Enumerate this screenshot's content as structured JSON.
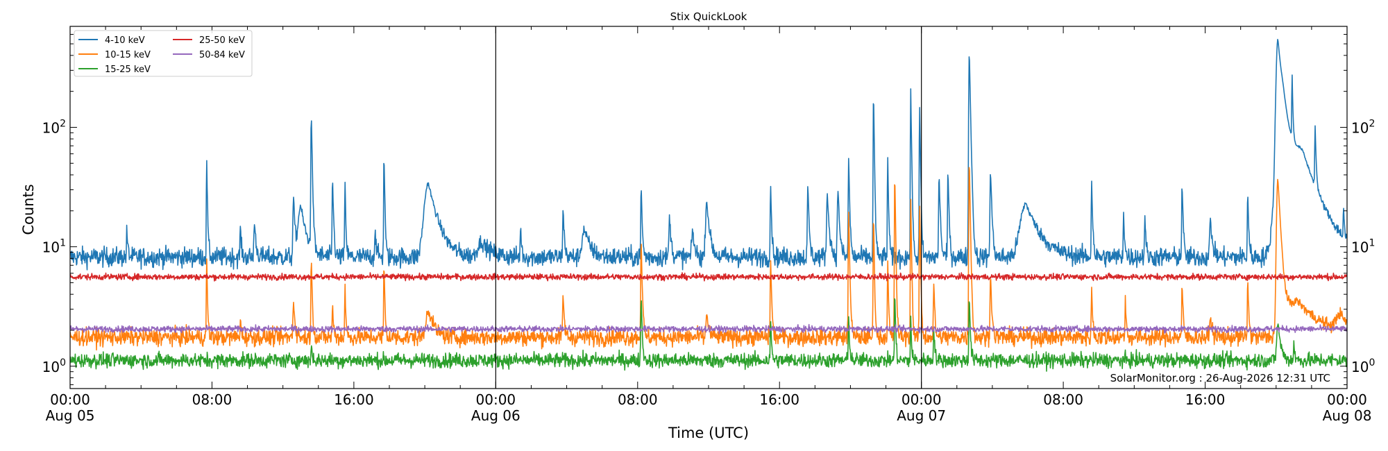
{
  "chart_data": {
    "type": "line",
    "title": "Stix QuickLook",
    "xlabel": "Time (UTC)",
    "ylabel": "Counts",
    "yscale": "log",
    "ylim": [
      0.65,
      700
    ],
    "x_unit": "hours since 2026-08-05 00:00 UTC",
    "xlim": [
      0,
      72
    ],
    "grid": false,
    "legend_position": "top-left",
    "footer_text": "SolarMonitor.org : 26-Aug-2026 12:31 UTC",
    "x_ticks": [
      {
        "hour": 0,
        "time": "00:00",
        "date": "Aug 05"
      },
      {
        "hour": 8,
        "time": "08:00",
        "date": ""
      },
      {
        "hour": 16,
        "time": "16:00",
        "date": ""
      },
      {
        "hour": 24,
        "time": "00:00",
        "date": "Aug 06"
      },
      {
        "hour": 32,
        "time": "08:00",
        "date": ""
      },
      {
        "hour": 40,
        "time": "16:00",
        "date": ""
      },
      {
        "hour": 48,
        "time": "00:00",
        "date": "Aug 07"
      },
      {
        "hour": 56,
        "time": "08:00",
        "date": ""
      },
      {
        "hour": 64,
        "time": "16:00",
        "date": ""
      },
      {
        "hour": 72,
        "time": "00:00",
        "date": "Aug 08"
      }
    ],
    "y_ticks": [
      {
        "value": 1,
        "base": "10",
        "exp": "0"
      },
      {
        "value": 10,
        "base": "10",
        "exp": "1"
      },
      {
        "value": 100,
        "base": "10",
        "exp": "2"
      }
    ],
    "day_boundaries": [
      24,
      48
    ],
    "series": [
      {
        "name": "4-10 keV",
        "color": "#1f77b4",
        "baseline": 8.2,
        "noise": 0.08,
        "peaks": [
          [
            3.2,
            14,
            0.05
          ],
          [
            7.7,
            56,
            0.04
          ],
          [
            9.6,
            15,
            0.05
          ],
          [
            10.4,
            16,
            0.08
          ],
          [
            12.6,
            26,
            0.08
          ],
          [
            13.0,
            22,
            0.3
          ],
          [
            13.6,
            130,
            0.05
          ],
          [
            14.8,
            39,
            0.05
          ],
          [
            15.5,
            37,
            0.04
          ],
          [
            17.2,
            14,
            0.06
          ],
          [
            17.7,
            63,
            0.04
          ],
          [
            20.2,
            34,
            0.5
          ],
          [
            23.2,
            11,
            0.5
          ],
          [
            25.4,
            15,
            0.05
          ],
          [
            27.8,
            21,
            0.06
          ],
          [
            29.0,
            14,
            0.3
          ],
          [
            32.2,
            33,
            0.05
          ],
          [
            33.8,
            18,
            0.08
          ],
          [
            35.1,
            14,
            0.1
          ],
          [
            35.9,
            24,
            0.15
          ],
          [
            39.5,
            33,
            0.05
          ],
          [
            41.6,
            33,
            0.06
          ],
          [
            42.7,
            27,
            0.1
          ],
          [
            43.3,
            30,
            0.08
          ],
          [
            43.9,
            56,
            0.05
          ],
          [
            45.3,
            205,
            0.04
          ],
          [
            46.1,
            60,
            0.04
          ],
          [
            47.4,
            210,
            0.04
          ],
          [
            47.9,
            160,
            0.04
          ],
          [
            49.0,
            40,
            0.06
          ],
          [
            49.5,
            45,
            0.05
          ],
          [
            50.7,
            440,
            0.06
          ],
          [
            51.9,
            43,
            0.07
          ],
          [
            53.9,
            23,
            0.7
          ],
          [
            57.6,
            36,
            0.05
          ],
          [
            59.4,
            20,
            0.05
          ],
          [
            60.6,
            19,
            0.05
          ],
          [
            62.7,
            35,
            0.05
          ],
          [
            64.3,
            17,
            0.1
          ],
          [
            66.4,
            29,
            0.05
          ],
          [
            68.1,
            490,
            0.2
          ],
          [
            68.4,
            120,
            0.7
          ],
          [
            68.9,
            220,
            0.04
          ],
          [
            70.2,
            80,
            0.05
          ],
          [
            69.5,
            40,
            1.0
          ],
          [
            71.8,
            19,
            0.04
          ]
        ]
      },
      {
        "name": "10-15 keV",
        "color": "#ff7f0e",
        "baseline": 1.75,
        "noise": 0.07,
        "peaks": [
          [
            7.7,
            8.5,
            0.04
          ],
          [
            9.6,
            2.5,
            0.05
          ],
          [
            13.6,
            8.0,
            0.05
          ],
          [
            12.6,
            3.5,
            0.08
          ],
          [
            14.8,
            3.3,
            0.05
          ],
          [
            15.5,
            5.0,
            0.04
          ],
          [
            17.7,
            7.7,
            0.04
          ],
          [
            20.2,
            3.0,
            0.3
          ],
          [
            27.8,
            4.0,
            0.06
          ],
          [
            32.2,
            12,
            0.05
          ],
          [
            35.9,
            2.8,
            0.1
          ],
          [
            39.5,
            8.0,
            0.05
          ],
          [
            43.9,
            20,
            0.05
          ],
          [
            45.3,
            20,
            0.04
          ],
          [
            46.1,
            8.0,
            0.04
          ],
          [
            46.5,
            43,
            0.04
          ],
          [
            47.4,
            25,
            0.04
          ],
          [
            47.9,
            24,
            0.04
          ],
          [
            48.7,
            5.0,
            0.05
          ],
          [
            50.7,
            55,
            0.05
          ],
          [
            51.9,
            6.0,
            0.06
          ],
          [
            57.6,
            4.5,
            0.05
          ],
          [
            59.5,
            4.0,
            0.04
          ],
          [
            62.7,
            5.0,
            0.05
          ],
          [
            64.3,
            2.6,
            0.1
          ],
          [
            66.4,
            5.5,
            0.05
          ],
          [
            68.1,
            37,
            0.15
          ],
          [
            69.2,
            3.5,
            1.3
          ],
          [
            71.6,
            2.5,
            0.5
          ]
        ]
      },
      {
        "name": "15-25 keV",
        "color": "#2ca02c",
        "baseline": 1.12,
        "noise": 0.06,
        "peaks": [
          [
            13.6,
            1.5,
            0.05
          ],
          [
            32.2,
            4.0,
            0.05
          ],
          [
            39.5,
            2.4,
            0.05
          ],
          [
            43.9,
            2.6,
            0.05
          ],
          [
            46.5,
            4.5,
            0.04
          ],
          [
            47.4,
            2.6,
            0.04
          ],
          [
            48.7,
            2.1,
            0.05
          ],
          [
            50.7,
            4.0,
            0.05
          ],
          [
            68.1,
            2.3,
            0.15
          ],
          [
            69.0,
            1.6,
            0.05
          ]
        ]
      },
      {
        "name": "25-50 keV",
        "color": "#d62728",
        "baseline": 5.6,
        "noise": 0.025,
        "peaks": []
      },
      {
        "name": "50-84 keV",
        "color": "#9467bd",
        "baseline": 2.05,
        "noise": 0.025,
        "peaks": []
      }
    ]
  }
}
